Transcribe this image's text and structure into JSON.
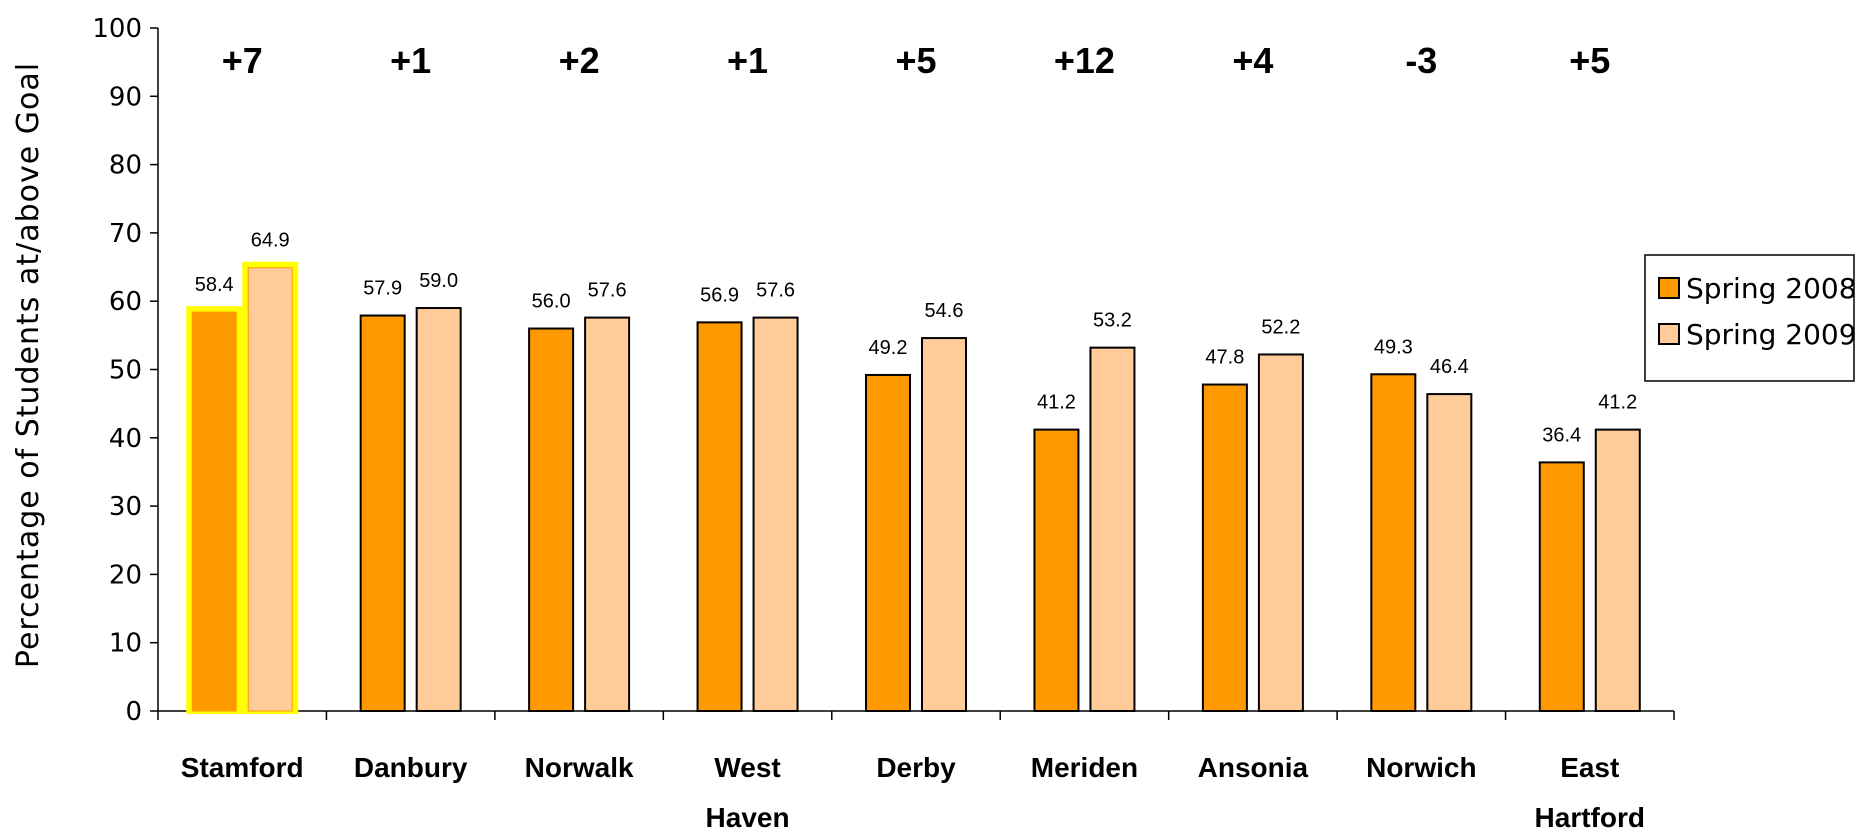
{
  "chart_data": {
    "type": "bar",
    "categories": [
      [
        "Stamford"
      ],
      [
        "Danbury"
      ],
      [
        "Norwalk"
      ],
      [
        "West",
        "Haven"
      ],
      [
        "Derby"
      ],
      [
        "Meriden"
      ],
      [
        "Ansonia"
      ],
      [
        "Norwich"
      ],
      [
        "East",
        "Hartford"
      ]
    ],
    "series": [
      {
        "name": "Spring 2008",
        "color": "#ff9900",
        "values": [
          58.4,
          57.9,
          56.0,
          56.9,
          49.2,
          41.2,
          47.8,
          49.3,
          36.4
        ],
        "labels": [
          "58.4",
          "57.9",
          "56.0",
          "56.9",
          "49.2",
          "41.2",
          "47.8",
          "49.3",
          "36.4"
        ]
      },
      {
        "name": "Spring 2009",
        "color": "#ffcc99",
        "values": [
          64.9,
          59.0,
          57.6,
          57.6,
          54.6,
          53.2,
          52.2,
          46.4,
          41.2
        ],
        "labels": [
          "64.9",
          "59.0",
          "57.6",
          "57.6",
          "54.6",
          "53.2",
          "52.2",
          "46.4",
          "41.2"
        ]
      }
    ],
    "changes": [
      "+7",
      "+1",
      "+2",
      "+1",
      "+5",
      "+12",
      "+4",
      "-3",
      "+5"
    ],
    "highlighted_category": "Stamford",
    "highlight_color": "#ffff00",
    "ylabel": "Percentage of Students at/above Goal",
    "xlabel": "",
    "title": "",
    "ylim": [
      0,
      100
    ],
    "yticks": [
      0,
      10,
      20,
      30,
      40,
      50,
      60,
      70,
      80,
      90,
      100
    ],
    "grid": false,
    "legend_position": "right"
  }
}
